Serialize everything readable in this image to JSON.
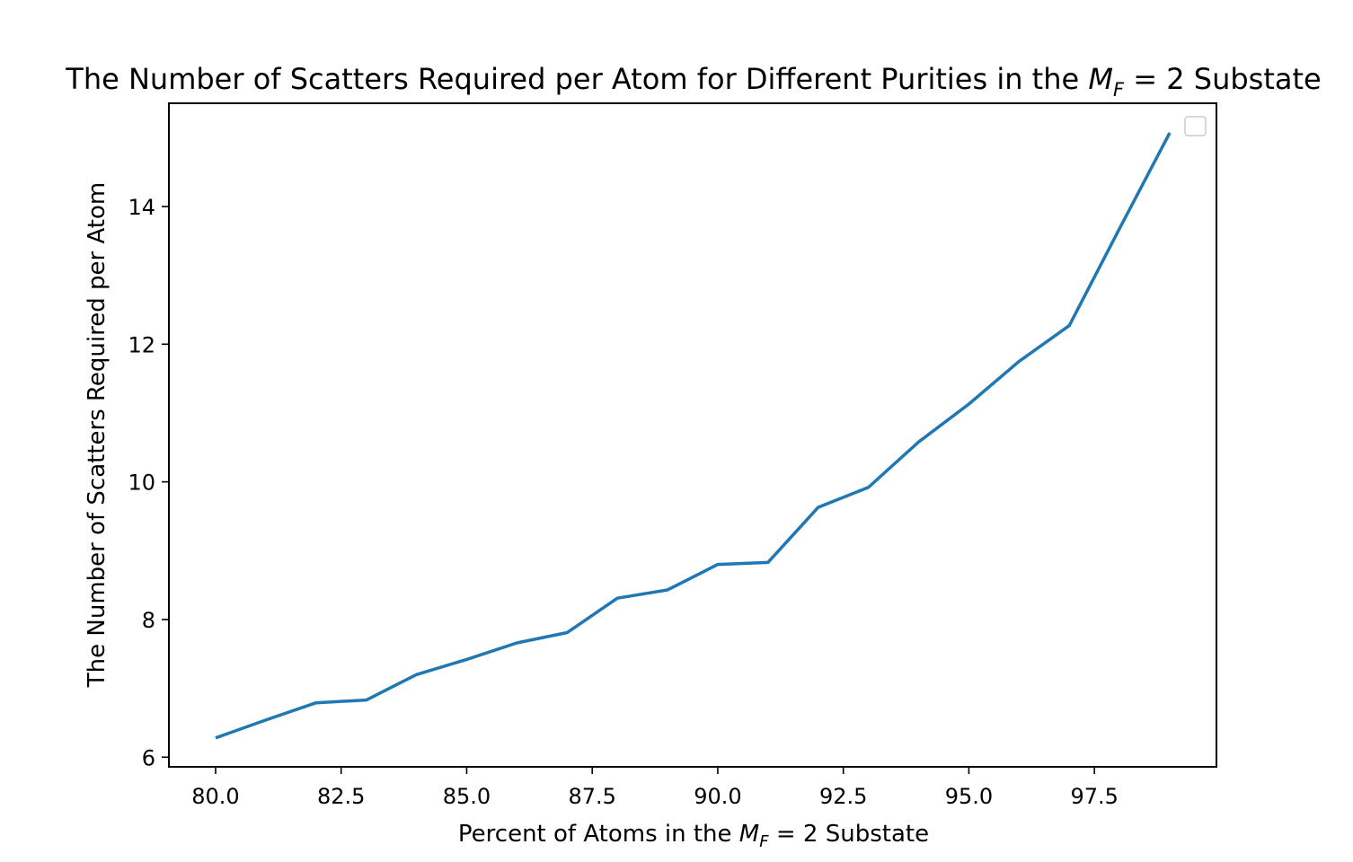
{
  "colors": {
    "series": "#1f77b4",
    "frame": "#000000",
    "background": "#ffffff",
    "legend_border": "#cccccc"
  },
  "chart_data": {
    "type": "line",
    "title": {
      "prefix": "The Number of Scatters Required per Atom for Different Purities in the ",
      "symbol": "M",
      "subscript": "F",
      "suffix": " = 2 Substate"
    },
    "xlabel": {
      "prefix": "Percent of Atoms in the ",
      "symbol": "M",
      "subscript": "F",
      "suffix": " = 2 Substate"
    },
    "ylabel": "The Number of Scatters Required per Atom",
    "xlim": [
      79.07,
      99.93
    ],
    "ylim": [
      5.86,
      15.5
    ],
    "xticks": [
      80.0,
      82.5,
      85.0,
      87.5,
      90.0,
      92.5,
      95.0,
      97.5
    ],
    "xtick_labels": [
      "80.0",
      "82.5",
      "85.0",
      "87.5",
      "90.0",
      "92.5",
      "95.0",
      "97.5"
    ],
    "yticks": [
      6,
      8,
      10,
      12,
      14
    ],
    "ytick_labels": [
      "6",
      "8",
      "10",
      "12",
      "14"
    ],
    "grid": false,
    "legend": {
      "placement": "upper right",
      "entries": []
    },
    "x": [
      80,
      81,
      82,
      83,
      84,
      85,
      86,
      87,
      88,
      89,
      90,
      91,
      92,
      93,
      94,
      95,
      96,
      97,
      98,
      99
    ],
    "series": [
      {
        "values": [
          6.28,
          6.54,
          6.79,
          6.83,
          7.2,
          7.42,
          7.66,
          7.81,
          8.31,
          8.43,
          8.8,
          8.83,
          9.63,
          9.92,
          10.58,
          11.13,
          11.75,
          12.27,
          13.68,
          15.07
        ]
      }
    ]
  }
}
